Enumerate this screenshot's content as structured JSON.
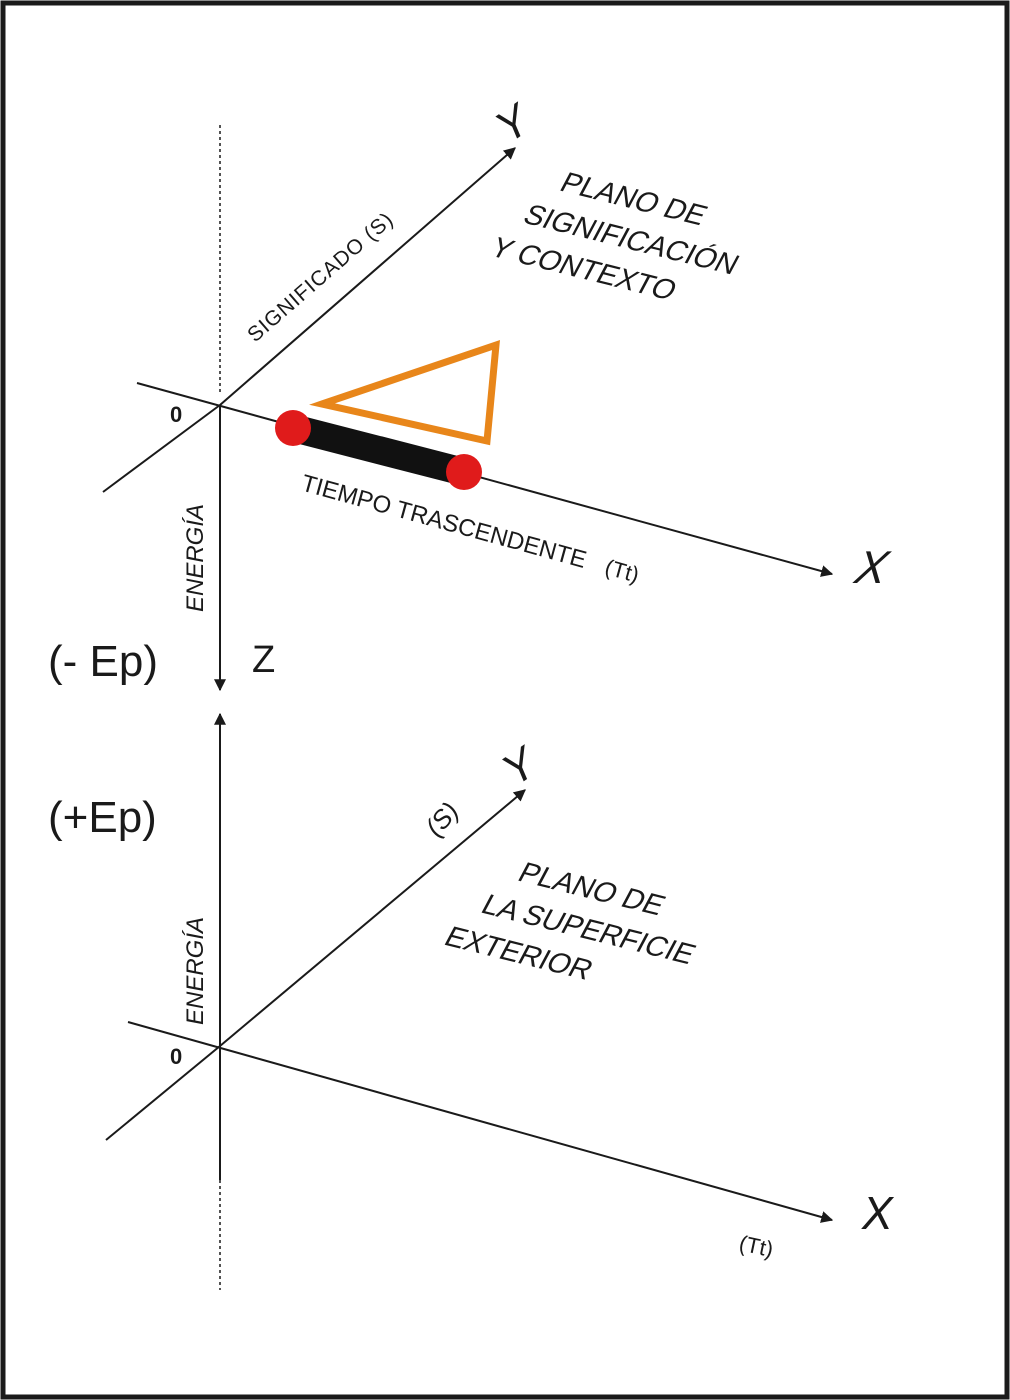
{
  "upper": {
    "origin": "0",
    "x_axis": "X",
    "y_axis": "Y",
    "y_axis_label": "SIGNIFICADO (S)",
    "x_axis_label": "TIEMPO TRASCENDENTE",
    "x_axis_unit": "(Tt)",
    "energy_label": "ENERGÍA",
    "plane_line_1": "PLANO DE",
    "plane_line_2": "SIGNIFICACIÓN",
    "plane_line_3": "Y CONTEXTO"
  },
  "middle": {
    "minus_ep": "(- Ep)",
    "z_axis": "Z",
    "plus_ep": "(+Ep)"
  },
  "lower": {
    "origin": "0",
    "x_axis": "X",
    "y_axis": "Y",
    "s_label": "(S)",
    "energy_label": "ENERGÍA",
    "x_axis_unit": "(Tt)",
    "plane_line_1": "PLANO DE",
    "plane_line_2": "LA SUPERFICIE",
    "plane_line_3": "EXTERIOR"
  },
  "colors": {
    "segment": "#111111",
    "endpoints": "#e01b1b",
    "triangle": "#e8861a",
    "frame": "#1a1a1a"
  }
}
